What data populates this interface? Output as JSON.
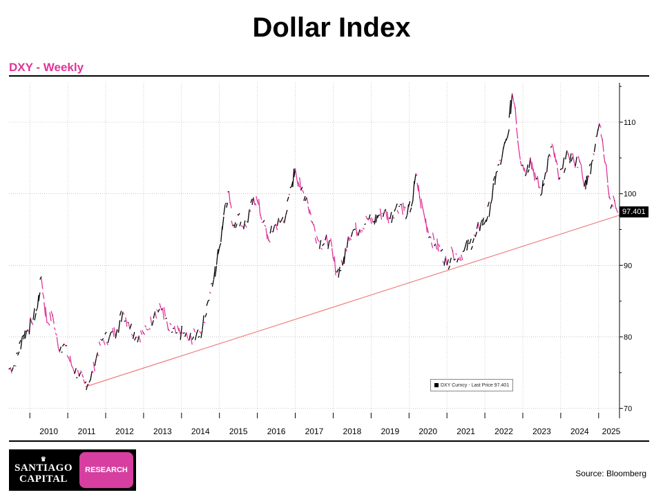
{
  "page": {
    "title": "Dollar Index",
    "subtitle": "DXY - Weekly",
    "source": "Source:  Bloomberg",
    "accent_color": "#e0339a",
    "logo": {
      "line1": "SANTIAGO",
      "line2": "CAPITAL",
      "badge": "RESEARCH",
      "badge_color": "#d63fa0"
    }
  },
  "chart_data": {
    "type": "line",
    "title": "Dollar Index",
    "subtitle": "DXY - Weekly",
    "xlabel": "",
    "ylabel": "",
    "xlim": [
      2009.45,
      2025.55
    ],
    "ylim": [
      69,
      115.5
    ],
    "x_ticks": [
      "2010",
      "2011",
      "2012",
      "2013",
      "2014",
      "2015",
      "2016",
      "2017",
      "2018",
      "2019",
      "2020",
      "2021",
      "2022",
      "2023",
      "2024",
      "2025"
    ],
    "y_ticks": [
      70,
      80,
      90,
      100,
      110
    ],
    "grid": true,
    "legend": {
      "label": "DXY Curncy - Last Price 97.401",
      "position": "bottom-right"
    },
    "last_price_label": "97.401",
    "series": [
      {
        "name": "DXY Curncy - Last Price",
        "color_up": "#000000",
        "color_down": "#e0339a",
        "points": [
          [
            2009.45,
            75.5
          ],
          [
            2009.6,
            76
          ],
          [
            2009.8,
            80
          ],
          [
            2009.95,
            81
          ],
          [
            2010.05,
            82
          ],
          [
            2010.2,
            84
          ],
          [
            2010.3,
            88.4
          ],
          [
            2010.45,
            82
          ],
          [
            2010.6,
            83
          ],
          [
            2010.75,
            78.5
          ],
          [
            2010.9,
            79
          ],
          [
            2011.1,
            76
          ],
          [
            2011.3,
            74.5
          ],
          [
            2011.45,
            73.5
          ],
          [
            2011.6,
            74
          ],
          [
            2011.75,
            77
          ],
          [
            2011.9,
            79.5
          ],
          [
            2012.1,
            80
          ],
          [
            2012.3,
            81
          ],
          [
            2012.45,
            83.5
          ],
          [
            2012.6,
            82
          ],
          [
            2012.8,
            80
          ],
          [
            2013.0,
            80.5
          ],
          [
            2013.1,
            81
          ],
          [
            2013.3,
            83.5
          ],
          [
            2013.5,
            84
          ],
          [
            2013.65,
            81
          ],
          [
            2013.85,
            80.5
          ],
          [
            2014.05,
            80.5
          ],
          [
            2014.2,
            79.5
          ],
          [
            2014.4,
            80.5
          ],
          [
            2014.55,
            81
          ],
          [
            2014.7,
            85
          ],
          [
            2014.85,
            88
          ],
          [
            2015.0,
            92.5
          ],
          [
            2015.15,
            98.5
          ],
          [
            2015.25,
            100.3
          ],
          [
            2015.35,
            95.5
          ],
          [
            2015.5,
            97
          ],
          [
            2015.6,
            95.5
          ],
          [
            2015.75,
            96
          ],
          [
            2015.9,
            99.5
          ],
          [
            2016.0,
            99
          ],
          [
            2016.15,
            96
          ],
          [
            2016.3,
            93.5
          ],
          [
            2016.45,
            95.5
          ],
          [
            2016.6,
            96
          ],
          [
            2016.75,
            97
          ],
          [
            2016.9,
            101
          ],
          [
            2017.0,
            103.5
          ],
          [
            2017.15,
            100.5
          ],
          [
            2017.3,
            99.5
          ],
          [
            2017.45,
            96
          ],
          [
            2017.6,
            93.5
          ],
          [
            2017.75,
            93
          ],
          [
            2017.9,
            93.5
          ],
          [
            2018.0,
            91
          ],
          [
            2018.1,
            89
          ],
          [
            2018.25,
            90
          ],
          [
            2018.4,
            94
          ],
          [
            2018.55,
            95
          ],
          [
            2018.7,
            95
          ],
          [
            2018.9,
            96.5
          ],
          [
            2019.05,
            96
          ],
          [
            2019.2,
            97
          ],
          [
            2019.35,
            97.5
          ],
          [
            2019.5,
            96.5
          ],
          [
            2019.65,
            98
          ],
          [
            2019.8,
            98.5
          ],
          [
            2019.95,
            97
          ],
          [
            2020.1,
            99
          ],
          [
            2020.18,
            102.8
          ],
          [
            2020.28,
            99.5
          ],
          [
            2020.4,
            97
          ],
          [
            2020.55,
            94
          ],
          [
            2020.7,
            93
          ],
          [
            2020.85,
            92
          ],
          [
            2021.0,
            90
          ],
          [
            2021.15,
            92
          ],
          [
            2021.3,
            91
          ],
          [
            2021.45,
            92
          ],
          [
            2021.6,
            93
          ],
          [
            2021.75,
            94
          ],
          [
            2021.9,
            96
          ],
          [
            2022.0,
            96
          ],
          [
            2022.15,
            98.5
          ],
          [
            2022.3,
            103
          ],
          [
            2022.45,
            105
          ],
          [
            2022.6,
            108
          ],
          [
            2022.72,
            114
          ],
          [
            2022.8,
            112
          ],
          [
            2022.9,
            106
          ],
          [
            2023.0,
            104
          ],
          [
            2023.1,
            103
          ],
          [
            2023.2,
            105
          ],
          [
            2023.35,
            102
          ],
          [
            2023.5,
            100
          ],
          [
            2023.6,
            103
          ],
          [
            2023.7,
            105.5
          ],
          [
            2023.8,
            106.5
          ],
          [
            2023.95,
            102
          ],
          [
            2024.05,
            103.5
          ],
          [
            2024.2,
            105.5
          ],
          [
            2024.35,
            104.5
          ],
          [
            2024.5,
            104.5
          ],
          [
            2024.62,
            101
          ],
          [
            2024.72,
            102.5
          ],
          [
            2024.82,
            104.5
          ],
          [
            2024.95,
            108
          ],
          [
            2025.02,
            109.8
          ],
          [
            2025.1,
            107.5
          ],
          [
            2025.2,
            104
          ],
          [
            2025.28,
            99.5
          ],
          [
            2025.35,
            98.5
          ],
          [
            2025.42,
            99
          ],
          [
            2025.5,
            97.4
          ]
        ]
      }
    ],
    "trendline": {
      "color": "#f08080",
      "from": [
        2011.45,
        73
      ],
      "to": [
        2025.55,
        97
      ]
    }
  }
}
